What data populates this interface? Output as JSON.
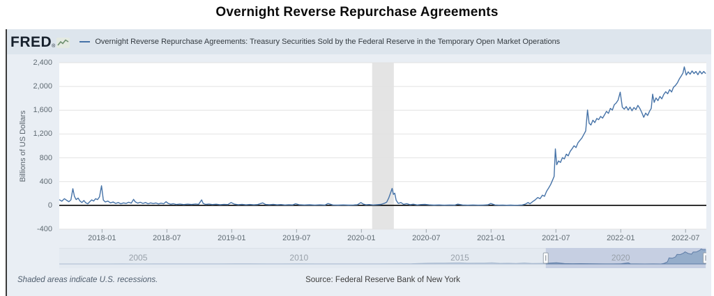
{
  "title": "Overnight Reverse Repurchase Agreements",
  "header": {
    "logo_text": "FRED",
    "logo_reg": "®",
    "legend_label": "Overnight Reverse Repurchase Agreements: Treasury Securities Sold by the Federal Reserve in the Temporary Open Market Operations"
  },
  "footer": {
    "recessions_note": "Shaded areas indicate U.S. recessions.",
    "source": "Source: Federal Reserve Bank of New York"
  },
  "colors": {
    "line": "#4572a7",
    "zero_line": "#000000",
    "gridline": "#e2e2e2",
    "recession_band": "#e4e4e4",
    "panel_bg": "#e9eef4",
    "header_bg": "#dde5ed",
    "nav_bg": "#dde5ee",
    "nav_selection_bg": "#c6cfe2",
    "nav_area_fill": "#8fa8c8",
    "nav_area_stroke": "#5e7ca6"
  },
  "chart_data": {
    "type": "line",
    "title": "Overnight Reverse Repurchase Agreements",
    "series_name": "Overnight Reverse Repurchase Agreements: Treasury Securities Sold by the Federal Reserve in the Temporary Open Market Operations",
    "xlabel": "",
    "ylabel": "Billions of US Dollars",
    "x_domain": [
      2017.67,
      2022.66
    ],
    "y_domain": [
      -400,
      2400
    ],
    "grid": true,
    "legend_position": "top",
    "y_ticks": [
      {
        "v": 2400,
        "label": "2,400"
      },
      {
        "v": 2000,
        "label": "2,000"
      },
      {
        "v": 1600,
        "label": "1,600"
      },
      {
        "v": 1200,
        "label": "1,200"
      },
      {
        "v": 800,
        "label": "800"
      },
      {
        "v": 400,
        "label": "400"
      },
      {
        "v": 0,
        "label": "0"
      },
      {
        "v": -400,
        "label": "-400"
      }
    ],
    "x_ticks": [
      {
        "v": 2018.0,
        "label": "2018-01"
      },
      {
        "v": 2018.5,
        "label": "2018-07"
      },
      {
        "v": 2019.0,
        "label": "2019-01"
      },
      {
        "v": 2019.5,
        "label": "2019-07"
      },
      {
        "v": 2020.0,
        "label": "2020-01"
      },
      {
        "v": 2020.5,
        "label": "2020-07"
      },
      {
        "v": 2021.0,
        "label": "2021-01"
      },
      {
        "v": 2021.5,
        "label": "2021-07"
      },
      {
        "v": 2022.0,
        "label": "2022-01"
      },
      {
        "v": 2022.5,
        "label": "2022-07"
      }
    ],
    "recession_bands": [
      [
        2020.083,
        2020.25
      ]
    ],
    "points": [
      [
        2017.67,
        95
      ],
      [
        2017.69,
        70
      ],
      [
        2017.71,
        112
      ],
      [
        2017.727,
        85
      ],
      [
        2017.744,
        62
      ],
      [
        2017.76,
        92
      ],
      [
        2017.775,
        280
      ],
      [
        2017.787,
        150
      ],
      [
        2017.8,
        97
      ],
      [
        2017.815,
        122
      ],
      [
        2017.83,
        72
      ],
      [
        2017.845,
        47
      ],
      [
        2017.86,
        82
      ],
      [
        2017.875,
        42
      ],
      [
        2017.89,
        27
      ],
      [
        2017.905,
        62
      ],
      [
        2017.92,
        92
      ],
      [
        2017.935,
        72
      ],
      [
        2017.95,
        112
      ],
      [
        2017.965,
        97
      ],
      [
        2017.98,
        142
      ],
      [
        2017.996,
        330
      ],
      [
        2018.01,
        90
      ],
      [
        2018.025,
        57
      ],
      [
        2018.045,
        72
      ],
      [
        2018.065,
        42
      ],
      [
        2018.085,
        57
      ],
      [
        2018.105,
        32
      ],
      [
        2018.125,
        47
      ],
      [
        2018.145,
        27
      ],
      [
        2018.165,
        42
      ],
      [
        2018.185,
        32
      ],
      [
        2018.205,
        52
      ],
      [
        2018.225,
        37
      ],
      [
        2018.243,
        102
      ],
      [
        2018.255,
        62
      ],
      [
        2018.275,
        37
      ],
      [
        2018.295,
        52
      ],
      [
        2018.315,
        32
      ],
      [
        2018.335,
        47
      ],
      [
        2018.355,
        27
      ],
      [
        2018.375,
        42
      ],
      [
        2018.395,
        30
      ],
      [
        2018.415,
        40
      ],
      [
        2018.435,
        24
      ],
      [
        2018.455,
        37
      ],
      [
        2018.475,
        27
      ],
      [
        2018.493,
        62
      ],
      [
        2018.51,
        32
      ],
      [
        2018.53,
        20
      ],
      [
        2018.55,
        28
      ],
      [
        2018.572,
        15
      ],
      [
        2018.6,
        23
      ],
      [
        2018.63,
        13
      ],
      [
        2018.66,
        21
      ],
      [
        2018.69,
        15
      ],
      [
        2018.72,
        23
      ],
      [
        2018.745,
        18
      ],
      [
        2018.768,
        92
      ],
      [
        2018.78,
        32
      ],
      [
        2018.8,
        16
      ],
      [
        2018.825,
        23
      ],
      [
        2018.85,
        13
      ],
      [
        2018.88,
        19
      ],
      [
        2018.91,
        11
      ],
      [
        2018.94,
        17
      ],
      [
        2018.97,
        13
      ],
      [
        2018.995,
        47
      ],
      [
        2019.02,
        21
      ],
      [
        2019.05,
        11
      ],
      [
        2019.08,
        17
      ],
      [
        2019.11,
        9
      ],
      [
        2019.14,
        15
      ],
      [
        2019.17,
        9
      ],
      [
        2019.2,
        13
      ],
      [
        2019.238,
        42
      ],
      [
        2019.26,
        16
      ],
      [
        2019.29,
        11
      ],
      [
        2019.32,
        17
      ],
      [
        2019.35,
        9
      ],
      [
        2019.38,
        13
      ],
      [
        2019.41,
        7
      ],
      [
        2019.44,
        11
      ],
      [
        2019.47,
        8
      ],
      [
        2019.492,
        26
      ],
      [
        2019.52,
        11
      ],
      [
        2019.56,
        6
      ],
      [
        2019.6,
        10
      ],
      [
        2019.64,
        5
      ],
      [
        2019.68,
        9
      ],
      [
        2019.72,
        5
      ],
      [
        2019.742,
        31
      ],
      [
        2019.78,
        7
      ],
      [
        2019.82,
        4
      ],
      [
        2019.86,
        8
      ],
      [
        2019.9,
        4
      ],
      [
        2019.94,
        7
      ],
      [
        2019.97,
        11
      ],
      [
        2019.996,
        46
      ],
      [
        2020.015,
        21
      ],
      [
        2020.035,
        9
      ],
      [
        2020.06,
        13
      ],
      [
        2020.09,
        7
      ],
      [
        2020.12,
        11
      ],
      [
        2020.15,
        16
      ],
      [
        2020.175,
        32
      ],
      [
        2020.195,
        55
      ],
      [
        2020.21,
        120
      ],
      [
        2020.225,
        210
      ],
      [
        2020.237,
        285
      ],
      [
        2020.247,
        185
      ],
      [
        2020.257,
        205
      ],
      [
        2020.268,
        85
      ],
      [
        2020.285,
        32
      ],
      [
        2020.305,
        47
      ],
      [
        2020.325,
        17
      ],
      [
        2020.35,
        29
      ],
      [
        2020.375,
        11
      ],
      [
        2020.4,
        19
      ],
      [
        2020.43,
        7
      ],
      [
        2020.46,
        13
      ],
      [
        2020.49,
        16
      ],
      [
        2020.52,
        9
      ],
      [
        2020.56,
        4
      ],
      [
        2020.6,
        8
      ],
      [
        2020.64,
        3
      ],
      [
        2020.68,
        7
      ],
      [
        2020.72,
        4
      ],
      [
        2020.742,
        21
      ],
      [
        2020.78,
        6
      ],
      [
        2020.82,
        3
      ],
      [
        2020.86,
        6
      ],
      [
        2020.9,
        3
      ],
      [
        2020.94,
        5
      ],
      [
        2020.975,
        9
      ],
      [
        2020.998,
        31
      ],
      [
        2021.03,
        6
      ],
      [
        2021.06,
        3
      ],
      [
        2021.09,
        5
      ],
      [
        2021.12,
        2
      ],
      [
        2021.15,
        4
      ],
      [
        2021.18,
        2
      ],
      [
        2021.21,
        3
      ],
      [
        2021.24,
        6
      ],
      [
        2021.265,
        22
      ],
      [
        2021.285,
        47
      ],
      [
        2021.3,
        27
      ],
      [
        2021.32,
        62
      ],
      [
        2021.34,
        92
      ],
      [
        2021.36,
        132
      ],
      [
        2021.378,
        112
      ],
      [
        2021.396,
        172
      ],
      [
        2021.412,
        152
      ],
      [
        2021.428,
        237
      ],
      [
        2021.444,
        292
      ],
      [
        2021.46,
        352
      ],
      [
        2021.474,
        422
      ],
      [
        2021.486,
        487
      ],
      [
        2021.496,
        950
      ],
      [
        2021.506,
        682
      ],
      [
        2021.52,
        747
      ],
      [
        2021.535,
        722
      ],
      [
        2021.55,
        802
      ],
      [
        2021.565,
        782
      ],
      [
        2021.58,
        862
      ],
      [
        2021.595,
        832
      ],
      [
        2021.61,
        907
      ],
      [
        2021.625,
        952
      ],
      [
        2021.64,
        1002
      ],
      [
        2021.655,
        972
      ],
      [
        2021.67,
        1052
      ],
      [
        2021.685,
        1092
      ],
      [
        2021.7,
        1132
      ],
      [
        2021.715,
        1192
      ],
      [
        2021.73,
        1252
      ],
      [
        2021.744,
        1605
      ],
      [
        2021.756,
        1382
      ],
      [
        2021.77,
        1352
      ],
      [
        2021.785,
        1432
      ],
      [
        2021.8,
        1392
      ],
      [
        2021.815,
        1462
      ],
      [
        2021.83,
        1442
      ],
      [
        2021.845,
        1497
      ],
      [
        2021.86,
        1467
      ],
      [
        2021.875,
        1522
      ],
      [
        2021.89,
        1582
      ],
      [
        2021.905,
        1547
      ],
      [
        2021.92,
        1632
      ],
      [
        2021.935,
        1602
      ],
      [
        2021.95,
        1692
      ],
      [
        2021.965,
        1722
      ],
      [
        2021.98,
        1772
      ],
      [
        2021.996,
        1904
      ],
      [
        2022.012,
        1652
      ],
      [
        2022.027,
        1617
      ],
      [
        2022.042,
        1662
      ],
      [
        2022.057,
        1602
      ],
      [
        2022.072,
        1652
      ],
      [
        2022.087,
        1592
      ],
      [
        2022.102,
        1647
      ],
      [
        2022.117,
        1612
      ],
      [
        2022.132,
        1682
      ],
      [
        2022.147,
        1632
      ],
      [
        2022.162,
        1562
      ],
      [
        2022.177,
        1482
      ],
      [
        2022.192,
        1552
      ],
      [
        2022.207,
        1512
      ],
      [
        2022.222,
        1582
      ],
      [
        2022.235,
        1632
      ],
      [
        2022.246,
        1870
      ],
      [
        2022.258,
        1732
      ],
      [
        2022.272,
        1807
      ],
      [
        2022.287,
        1762
      ],
      [
        2022.302,
        1832
      ],
      [
        2022.317,
        1792
      ],
      [
        2022.332,
        1867
      ],
      [
        2022.347,
        1912
      ],
      [
        2022.362,
        1877
      ],
      [
        2022.377,
        1947
      ],
      [
        2022.392,
        1907
      ],
      [
        2022.407,
        1987
      ],
      [
        2022.422,
        2017
      ],
      [
        2022.437,
        2062
      ],
      [
        2022.452,
        2127
      ],
      [
        2022.467,
        2177
      ],
      [
        2022.48,
        2227
      ],
      [
        2022.49,
        2330
      ],
      [
        2022.505,
        2192
      ],
      [
        2022.52,
        2247
      ],
      [
        2022.535,
        2207
      ],
      [
        2022.55,
        2262
      ],
      [
        2022.565,
        2217
      ],
      [
        2022.58,
        2252
      ],
      [
        2022.595,
        2197
      ],
      [
        2022.61,
        2257
      ],
      [
        2022.625,
        2212
      ],
      [
        2022.64,
        2252
      ],
      [
        2022.655,
        2217
      ]
    ],
    "navigator": {
      "x_domain": [
        2002.55,
        2022.66
      ],
      "year_ticks": [
        {
          "v": 2005,
          "label": "2005"
        },
        {
          "v": 2010,
          "label": "2010"
        },
        {
          "v": 2015,
          "label": "2015"
        },
        {
          "v": 2020,
          "label": "2020"
        }
      ],
      "selection": [
        2017.67,
        2022.66
      ],
      "points": [
        [
          2002.55,
          0
        ],
        [
          2003,
          2
        ],
        [
          2003.5,
          5
        ],
        [
          2004,
          3
        ],
        [
          2004.5,
          8
        ],
        [
          2005,
          5
        ],
        [
          2005.5,
          10
        ],
        [
          2006,
          8
        ],
        [
          2006.5,
          12
        ],
        [
          2007,
          10
        ],
        [
          2007.5,
          15
        ],
        [
          2008,
          20
        ],
        [
          2008.5,
          30
        ],
        [
          2009,
          15
        ],
        [
          2009.5,
          10
        ],
        [
          2010,
          20
        ],
        [
          2010.5,
          15
        ],
        [
          2011,
          10
        ],
        [
          2011.5,
          15
        ],
        [
          2012,
          10
        ],
        [
          2012.5,
          15
        ],
        [
          2013,
          20
        ],
        [
          2013.5,
          40
        ],
        [
          2013.75,
          90
        ],
        [
          2014,
          120
        ],
        [
          2014.25,
          140
        ],
        [
          2014.5,
          130
        ],
        [
          2014.75,
          160
        ],
        [
          2015,
          180
        ],
        [
          2015.25,
          120
        ],
        [
          2015.5,
          140
        ],
        [
          2015.75,
          130
        ],
        [
          2016,
          200
        ],
        [
          2016.25,
          100
        ],
        [
          2016.5,
          120
        ],
        [
          2016.75,
          90
        ],
        [
          2017,
          160
        ],
        [
          2017.25,
          80
        ],
        [
          2017.5,
          100
        ],
        [
          2017.75,
          120
        ],
        [
          2018,
          200
        ],
        [
          2018.25,
          60
        ],
        [
          2018.5,
          40
        ],
        [
          2018.75,
          50
        ],
        [
          2019,
          40
        ],
        [
          2019.25,
          20
        ],
        [
          2019.5,
          10
        ],
        [
          2019.75,
          8
        ],
        [
          2020,
          25
        ],
        [
          2020.235,
          180
        ],
        [
          2020.3,
          30
        ],
        [
          2020.5,
          6
        ],
        [
          2020.75,
          4
        ],
        [
          2021,
          15
        ],
        [
          2021.25,
          5
        ],
        [
          2021.35,
          100
        ],
        [
          2021.45,
          330
        ],
        [
          2021.5,
          950
        ],
        [
          2021.6,
          900
        ],
        [
          2021.7,
          1100
        ],
        [
          2021.75,
          1500
        ],
        [
          2021.85,
          1470
        ],
        [
          2021.95,
          1700
        ],
        [
          2022,
          1900
        ],
        [
          2022.1,
          1640
        ],
        [
          2022.2,
          1540
        ],
        [
          2022.25,
          1870
        ],
        [
          2022.35,
          1880
        ],
        [
          2022.45,
          2120
        ],
        [
          2022.5,
          2330
        ],
        [
          2022.55,
          2220
        ],
        [
          2022.66,
          2240
        ]
      ]
    }
  }
}
